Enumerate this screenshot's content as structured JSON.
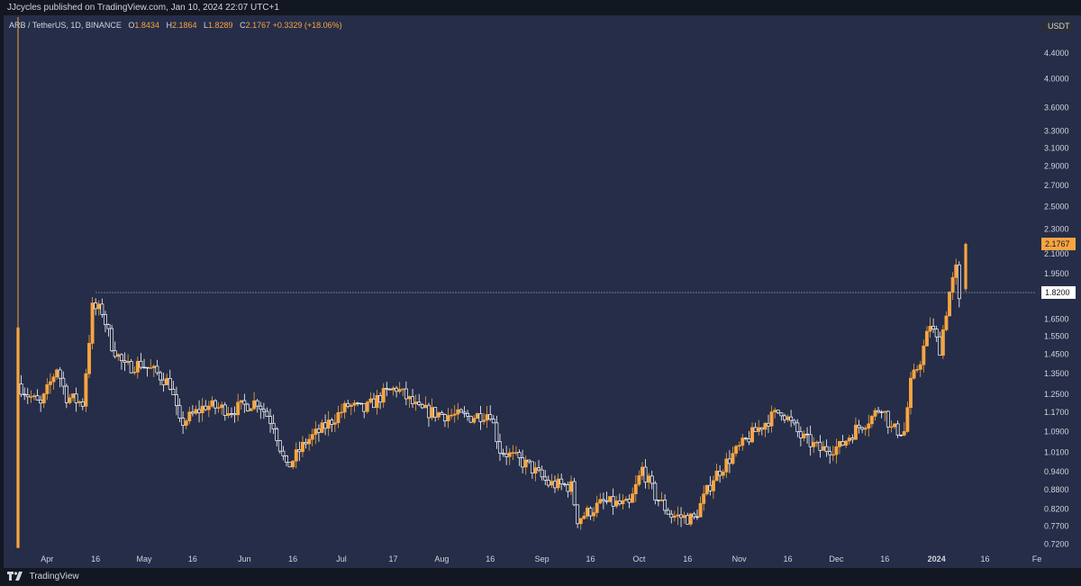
{
  "header": {
    "publisher_line": "JJcycles published on TradingView.com, Jan 10, 2024 22:07 UTC+1"
  },
  "legend": {
    "symbol": "ARB / TetherUS, 1D, BINANCE",
    "o_label": "O",
    "o": "1.8434",
    "h_label": "H",
    "h": "2.1864",
    "l_label": "L",
    "l": "1.8289",
    "c_label": "C",
    "c": "2.1767",
    "change": "+0.3329 (+18.06%)"
  },
  "footer": {
    "brand": "TradingView"
  },
  "colors": {
    "background": "#252d48",
    "up": "#f7a541",
    "down": "#ffffff",
    "axis_text": "#d1d4dc",
    "last_price_tag": "#f7a541"
  },
  "chart_data": {
    "type": "candlestick",
    "currency": "USDT",
    "scale": "log",
    "ylim": [
      0.7,
      4.7
    ],
    "xlim": [
      "2023-03-23",
      "2024-02-01"
    ],
    "y_ticks": [
      "4.4000",
      "4.0000",
      "3.6000",
      "3.3000",
      "3.1000",
      "2.9000",
      "2.7000",
      "2.5000",
      "2.3000",
      "2.1000",
      "1.9500",
      "1.8200",
      "1.6500",
      "1.5500",
      "1.4500",
      "1.3500",
      "1.2500",
      "1.1700",
      "1.0900",
      "1.0100",
      "0.9400",
      "0.8800",
      "0.8200",
      "0.7700",
      "0.7200"
    ],
    "x_ticks": [
      {
        "label": "Apr",
        "date": "2023-04-01",
        "bold": false
      },
      {
        "label": "16",
        "date": "2023-04-16",
        "bold": false
      },
      {
        "label": "May",
        "date": "2023-05-01",
        "bold": false
      },
      {
        "label": "16",
        "date": "2023-05-16",
        "bold": false
      },
      {
        "label": "Jun",
        "date": "2023-06-01",
        "bold": false
      },
      {
        "label": "16",
        "date": "2023-06-16",
        "bold": false
      },
      {
        "label": "Jul",
        "date": "2023-07-01",
        "bold": false
      },
      {
        "label": "17",
        "date": "2023-07-17",
        "bold": false
      },
      {
        "label": "Aug",
        "date": "2023-08-01",
        "bold": false
      },
      {
        "label": "16",
        "date": "2023-08-16",
        "bold": false
      },
      {
        "label": "Sep",
        "date": "2023-09-01",
        "bold": false
      },
      {
        "label": "16",
        "date": "2023-09-16",
        "bold": false
      },
      {
        "label": "Oct",
        "date": "2023-10-01",
        "bold": false
      },
      {
        "label": "16",
        "date": "2023-10-16",
        "bold": false
      },
      {
        "label": "Nov",
        "date": "2023-11-01",
        "bold": false
      },
      {
        "label": "16",
        "date": "2023-11-16",
        "bold": false
      },
      {
        "label": "Dec",
        "date": "2023-12-01",
        "bold": false
      },
      {
        "label": "16",
        "date": "2023-12-16",
        "bold": false
      },
      {
        "label": "2024",
        "date": "2024-01-01",
        "bold": true
      },
      {
        "label": "16",
        "date": "2024-01-16",
        "bold": false
      },
      {
        "label": "Fe",
        "date": "2024-02-01",
        "bold": false
      }
    ],
    "horizontal_line": {
      "value": 1.82,
      "label": "1.8200",
      "from": "2023-04-16",
      "style": "dotted"
    },
    "last_price": {
      "value": 2.1767,
      "label": "2.1767"
    },
    "anchors": [
      [
        "2023-03-23",
        1.3
      ],
      [
        "2023-03-26",
        1.25
      ],
      [
        "2023-03-30",
        1.2
      ],
      [
        "2023-04-04",
        1.38
      ],
      [
        "2023-04-07",
        1.24
      ],
      [
        "2023-04-12",
        1.21
      ],
      [
        "2023-04-15",
        1.72
      ],
      [
        "2023-04-18",
        1.7
      ],
      [
        "2023-04-21",
        1.5
      ],
      [
        "2023-04-25",
        1.38
      ],
      [
        "2023-04-30",
        1.4
      ],
      [
        "2023-05-05",
        1.35
      ],
      [
        "2023-05-09",
        1.3
      ],
      [
        "2023-05-12",
        1.12
      ],
      [
        "2023-05-20",
        1.2
      ],
      [
        "2023-05-28",
        1.18
      ],
      [
        "2023-06-05",
        1.22
      ],
      [
        "2023-06-10",
        1.12
      ],
      [
        "2023-06-14",
        0.95
      ],
      [
        "2023-06-20",
        1.05
      ],
      [
        "2023-06-25",
        1.1
      ],
      [
        "2023-07-03",
        1.2
      ],
      [
        "2023-07-08",
        1.18
      ],
      [
        "2023-07-14",
        1.25
      ],
      [
        "2023-07-18",
        1.28
      ],
      [
        "2023-07-25",
        1.18
      ],
      [
        "2023-08-02",
        1.16
      ],
      [
        "2023-08-10",
        1.15
      ],
      [
        "2023-08-16",
        1.17
      ],
      [
        "2023-08-19",
        1.02
      ],
      [
        "2023-08-28",
        0.96
      ],
      [
        "2023-09-03",
        0.9
      ],
      [
        "2023-09-10",
        0.89
      ],
      [
        "2023-09-12",
        0.79
      ],
      [
        "2023-09-20",
        0.84
      ],
      [
        "2023-09-28",
        0.83
      ],
      [
        "2023-10-02",
        0.95
      ],
      [
        "2023-10-06",
        0.86
      ],
      [
        "2023-10-11",
        0.8
      ],
      [
        "2023-10-18",
        0.79
      ],
      [
        "2023-10-24",
        0.92
      ],
      [
        "2023-10-30",
        1.0
      ],
      [
        "2023-11-05",
        1.08
      ],
      [
        "2023-11-10",
        1.14
      ],
      [
        "2023-11-14",
        1.18
      ],
      [
        "2023-11-20",
        1.07
      ],
      [
        "2023-11-26",
        1.02
      ],
      [
        "2023-12-02",
        1.03
      ],
      [
        "2023-12-07",
        1.1
      ],
      [
        "2023-12-12",
        1.15
      ],
      [
        "2023-12-15",
        1.2
      ],
      [
        "2023-12-18",
        1.1
      ],
      [
        "2023-12-22",
        1.09
      ],
      [
        "2023-12-24",
        1.3
      ],
      [
        "2023-12-27",
        1.42
      ],
      [
        "2023-12-30",
        1.62
      ],
      [
        "2024-01-02",
        1.48
      ],
      [
        "2024-01-05",
        1.82
      ],
      [
        "2024-01-07",
        1.98
      ],
      [
        "2024-01-08",
        1.75
      ],
      [
        "2024-01-09",
        1.8434
      ]
    ],
    "candles": [
      {
        "d": "2023-03-23",
        "o": 11.8,
        "h": 11.8,
        "l": 0.71,
        "c": 1.3
      },
      {
        "d": "2024-01-10",
        "o": 1.8434,
        "h": 2.1864,
        "l": 1.8289,
        "c": 2.1767
      }
    ]
  }
}
